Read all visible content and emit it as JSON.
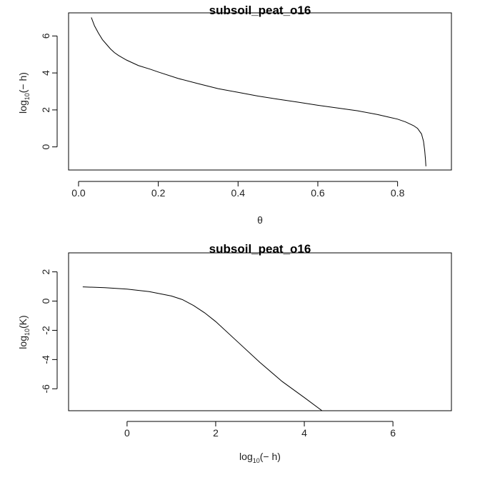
{
  "chart_data": [
    {
      "type": "line",
      "title": "subsoil_peat_o16",
      "xlabel": "θ",
      "ylabel": {
        "base": "log",
        "subscript": "10",
        "argument": "(− h)"
      },
      "xlim": [
        -0.025,
        0.935
      ],
      "ylim": [
        -1.25,
        7.25
      ],
      "xticks": [
        0,
        0.2,
        0.4,
        0.6,
        0.8
      ],
      "xtick_labels": [
        "0.0",
        "0.2",
        "0.4",
        "0.6",
        "0.8"
      ],
      "yticks": [
        0,
        2,
        4,
        6
      ],
      "ytick_labels": [
        "0",
        "2",
        "4",
        "6"
      ],
      "grid": false,
      "series": [
        {
          "x": [
            0.032,
            0.04,
            0.05,
            0.06,
            0.07,
            0.08,
            0.09,
            0.1,
            0.12,
            0.15,
            0.18,
            0.2,
            0.25,
            0.3,
            0.35,
            0.4,
            0.45,
            0.5,
            0.55,
            0.6,
            0.65,
            0.7,
            0.75,
            0.78,
            0.8,
            0.82,
            0.84,
            0.85,
            0.86,
            0.865,
            0.868,
            0.87,
            0.871
          ],
          "y": [
            7.0,
            6.55,
            6.15,
            5.8,
            5.55,
            5.3,
            5.1,
            4.95,
            4.7,
            4.4,
            4.2,
            4.05,
            3.7,
            3.42,
            3.15,
            2.95,
            2.75,
            2.58,
            2.42,
            2.25,
            2.1,
            1.95,
            1.75,
            1.6,
            1.5,
            1.35,
            1.15,
            1.0,
            0.7,
            0.3,
            -0.2,
            -0.7,
            -1.05
          ]
        }
      ]
    },
    {
      "type": "line",
      "title": "subsoil_peat_o16",
      "xlabel": {
        "base": "log",
        "subscript": "10",
        "argument": "(− h)"
      },
      "ylabel": {
        "base": "log",
        "subscript": "10",
        "argument": "(K)"
      },
      "xlim": [
        -1.32,
        7.32
      ],
      "ylim": [
        -7.5,
        3.3
      ],
      "xticks": [
        0,
        2,
        4,
        6
      ],
      "xtick_labels": [
        "0",
        "2",
        "4",
        "6"
      ],
      "yticks": [
        2,
        0,
        -2,
        -4,
        -6
      ],
      "ytick_labels": [
        "2",
        "0",
        "-2",
        "-4",
        "-6"
      ],
      "grid": false,
      "series": [
        {
          "x": [
            -1.0,
            -0.5,
            0.0,
            0.5,
            1.0,
            1.25,
            1.5,
            1.75,
            2.0,
            2.5,
            3.0,
            3.5,
            4.0,
            4.4
          ],
          "y": [
            0.97,
            0.92,
            0.82,
            0.65,
            0.35,
            0.1,
            -0.3,
            -0.8,
            -1.4,
            -2.8,
            -4.2,
            -5.5,
            -6.6,
            -7.5
          ]
        }
      ]
    }
  ]
}
